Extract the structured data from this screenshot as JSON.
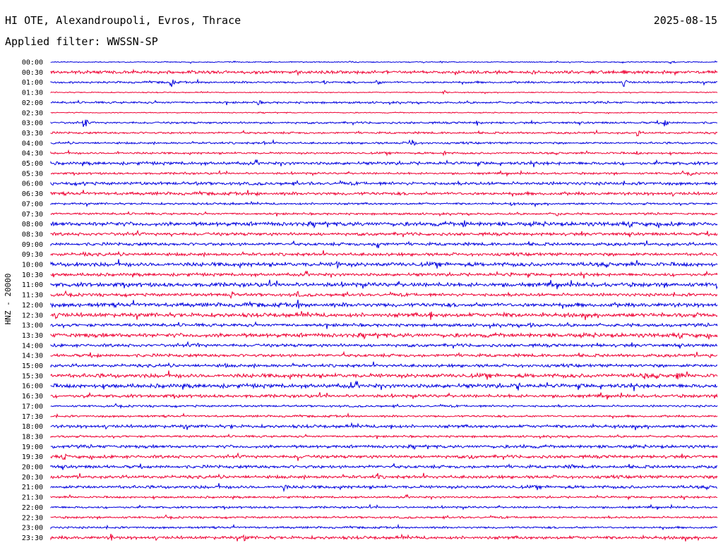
{
  "header": {
    "title": "HI OTE, Alexandroupoli, Evros, Thrace",
    "date": "2025-08-15",
    "filter": "Applied filter: WWSSN-SP"
  },
  "chart_data": {
    "type": "line",
    "ylabel": "HNZ - 20000",
    "colors": [
      "#0000dd",
      "#ee0033"
    ],
    "time_labels": [
      "00:00",
      "00:30",
      "01:00",
      "01:30",
      "02:00",
      "02:30",
      "03:00",
      "03:30",
      "04:00",
      "04:30",
      "05:00",
      "05:30",
      "06:00",
      "06:30",
      "07:00",
      "07:30",
      "08:00",
      "08:30",
      "09:00",
      "09:30",
      "10:00",
      "10:30",
      "11:00",
      "11:30",
      "12:00",
      "12:30",
      "13:00",
      "13:30",
      "14:00",
      "14:30",
      "15:00",
      "15:30",
      "16:00",
      "16:30",
      "17:00",
      "17:30",
      "18:00",
      "18:30",
      "19:00",
      "19:30",
      "20:00",
      "20:30",
      "21:00",
      "21:30",
      "22:00",
      "22:30",
      "23:00",
      "23:30"
    ],
    "noise_levels": [
      1,
      3,
      2,
      1,
      2,
      1,
      2,
      2,
      2,
      2,
      3,
      2,
      3,
      3,
      2,
      2,
      4,
      3,
      3,
      3,
      4,
      3,
      4,
      3,
      4,
      4,
      3,
      4,
      3,
      3,
      3,
      4,
      4,
      3,
      2,
      2,
      3,
      2,
      3,
      3,
      3,
      3,
      3,
      2,
      2,
      2,
      2,
      3
    ],
    "events": [
      [
        [
          0.93,
          4
        ],
        [
          0.45,
          2
        ]
      ],
      [
        [
          0.86,
          4
        ],
        [
          0.62,
          2
        ]
      ],
      [
        [
          0.18,
          9
        ],
        [
          0.41,
          4
        ],
        [
          0.49,
          6
        ],
        [
          0.86,
          8
        ]
      ],
      [
        [
          0.59,
          4
        ]
      ],
      [
        [
          0.31,
          8
        ]
      ],
      [],
      [
        [
          0.05,
          11
        ],
        [
          0.64,
          5
        ],
        [
          0.92,
          9
        ]
      ],
      [
        [
          0.88,
          6
        ]
      ],
      [
        [
          0.25,
          2
        ],
        [
          0.54,
          14
        ],
        [
          0.32,
          3
        ]
      ],
      [
        [
          0.1,
          4
        ],
        [
          0.59,
          5
        ],
        [
          0.88,
          4
        ]
      ],
      [
        [
          0.35,
          2
        ]
      ],
      [
        [
          0.2,
          3
        ],
        [
          0.96,
          4
        ]
      ],
      [
        [
          0.05,
          4
        ],
        [
          0.22,
          3
        ]
      ],
      [
        [
          0.31,
          4
        ],
        [
          0.47,
          3
        ]
      ],
      [
        [
          0.27,
          4
        ],
        [
          0.69,
          4
        ]
      ],
      [
        [
          0.76,
          5
        ]
      ],
      [
        [
          0.09,
          4
        ],
        [
          0.62,
          8
        ]
      ],
      [
        [
          0.1,
          3
        ],
        [
          0.18,
          4
        ]
      ],
      [
        [
          0.49,
          10
        ]
      ],
      [
        [
          0.05,
          5
        ],
        [
          0.15,
          4
        ]
      ],
      [
        [
          0.04,
          6
        ],
        [
          0.43,
          6
        ],
        [
          0.75,
          3
        ]
      ],
      [
        [
          0.07,
          5
        ],
        [
          0.69,
          4
        ]
      ],
      [
        [
          0.04,
          4
        ],
        [
          1.0,
          9
        ]
      ],
      [
        [
          0.27,
          8
        ],
        [
          0.37,
          6
        ]
      ],
      [
        [
          0.37,
          9
        ]
      ],
      [
        [
          0.01,
          6
        ],
        [
          0.57,
          8
        ],
        [
          0.68,
          4
        ]
      ],
      [
        [
          0.72,
          6
        ]
      ],
      [
        [
          0.05,
          5
        ],
        [
          0.67,
          3
        ]
      ],
      [
        [
          0.22,
          6
        ],
        [
          0.82,
          4
        ]
      ],
      [
        [
          0.07,
          4
        ],
        [
          0.99,
          5
        ]
      ],
      [
        [
          0.26,
          6
        ]
      ],
      [
        [
          0.89,
          7
        ],
        [
          0.94,
          9
        ]
      ],
      [
        [
          0.45,
          6
        ],
        [
          0.57,
          4
        ],
        [
          0.7,
          9
        ]
      ],
      [
        [
          0.05,
          3
        ]
      ],
      [
        [
          0.69,
          3
        ]
      ],
      [],
      [
        [
          0.2,
          4
        ],
        [
          0.27,
          4
        ],
        [
          0.51,
          5
        ],
        [
          0.8,
          3
        ]
      ],
      [],
      [
        [
          0.71,
          4
        ]
      ],
      [
        [
          0.02,
          6
        ],
        [
          0.37,
          9
        ],
        [
          0.63,
          7
        ]
      ],
      [
        [
          0.78,
          6
        ]
      ],
      [
        [
          0.49,
          6
        ]
      ],
      [
        [
          0.35,
          7
        ]
      ],
      [],
      [],
      [],
      [],
      [
        [
          0.09,
          7
        ],
        [
          0.29,
          7
        ]
      ]
    ]
  }
}
